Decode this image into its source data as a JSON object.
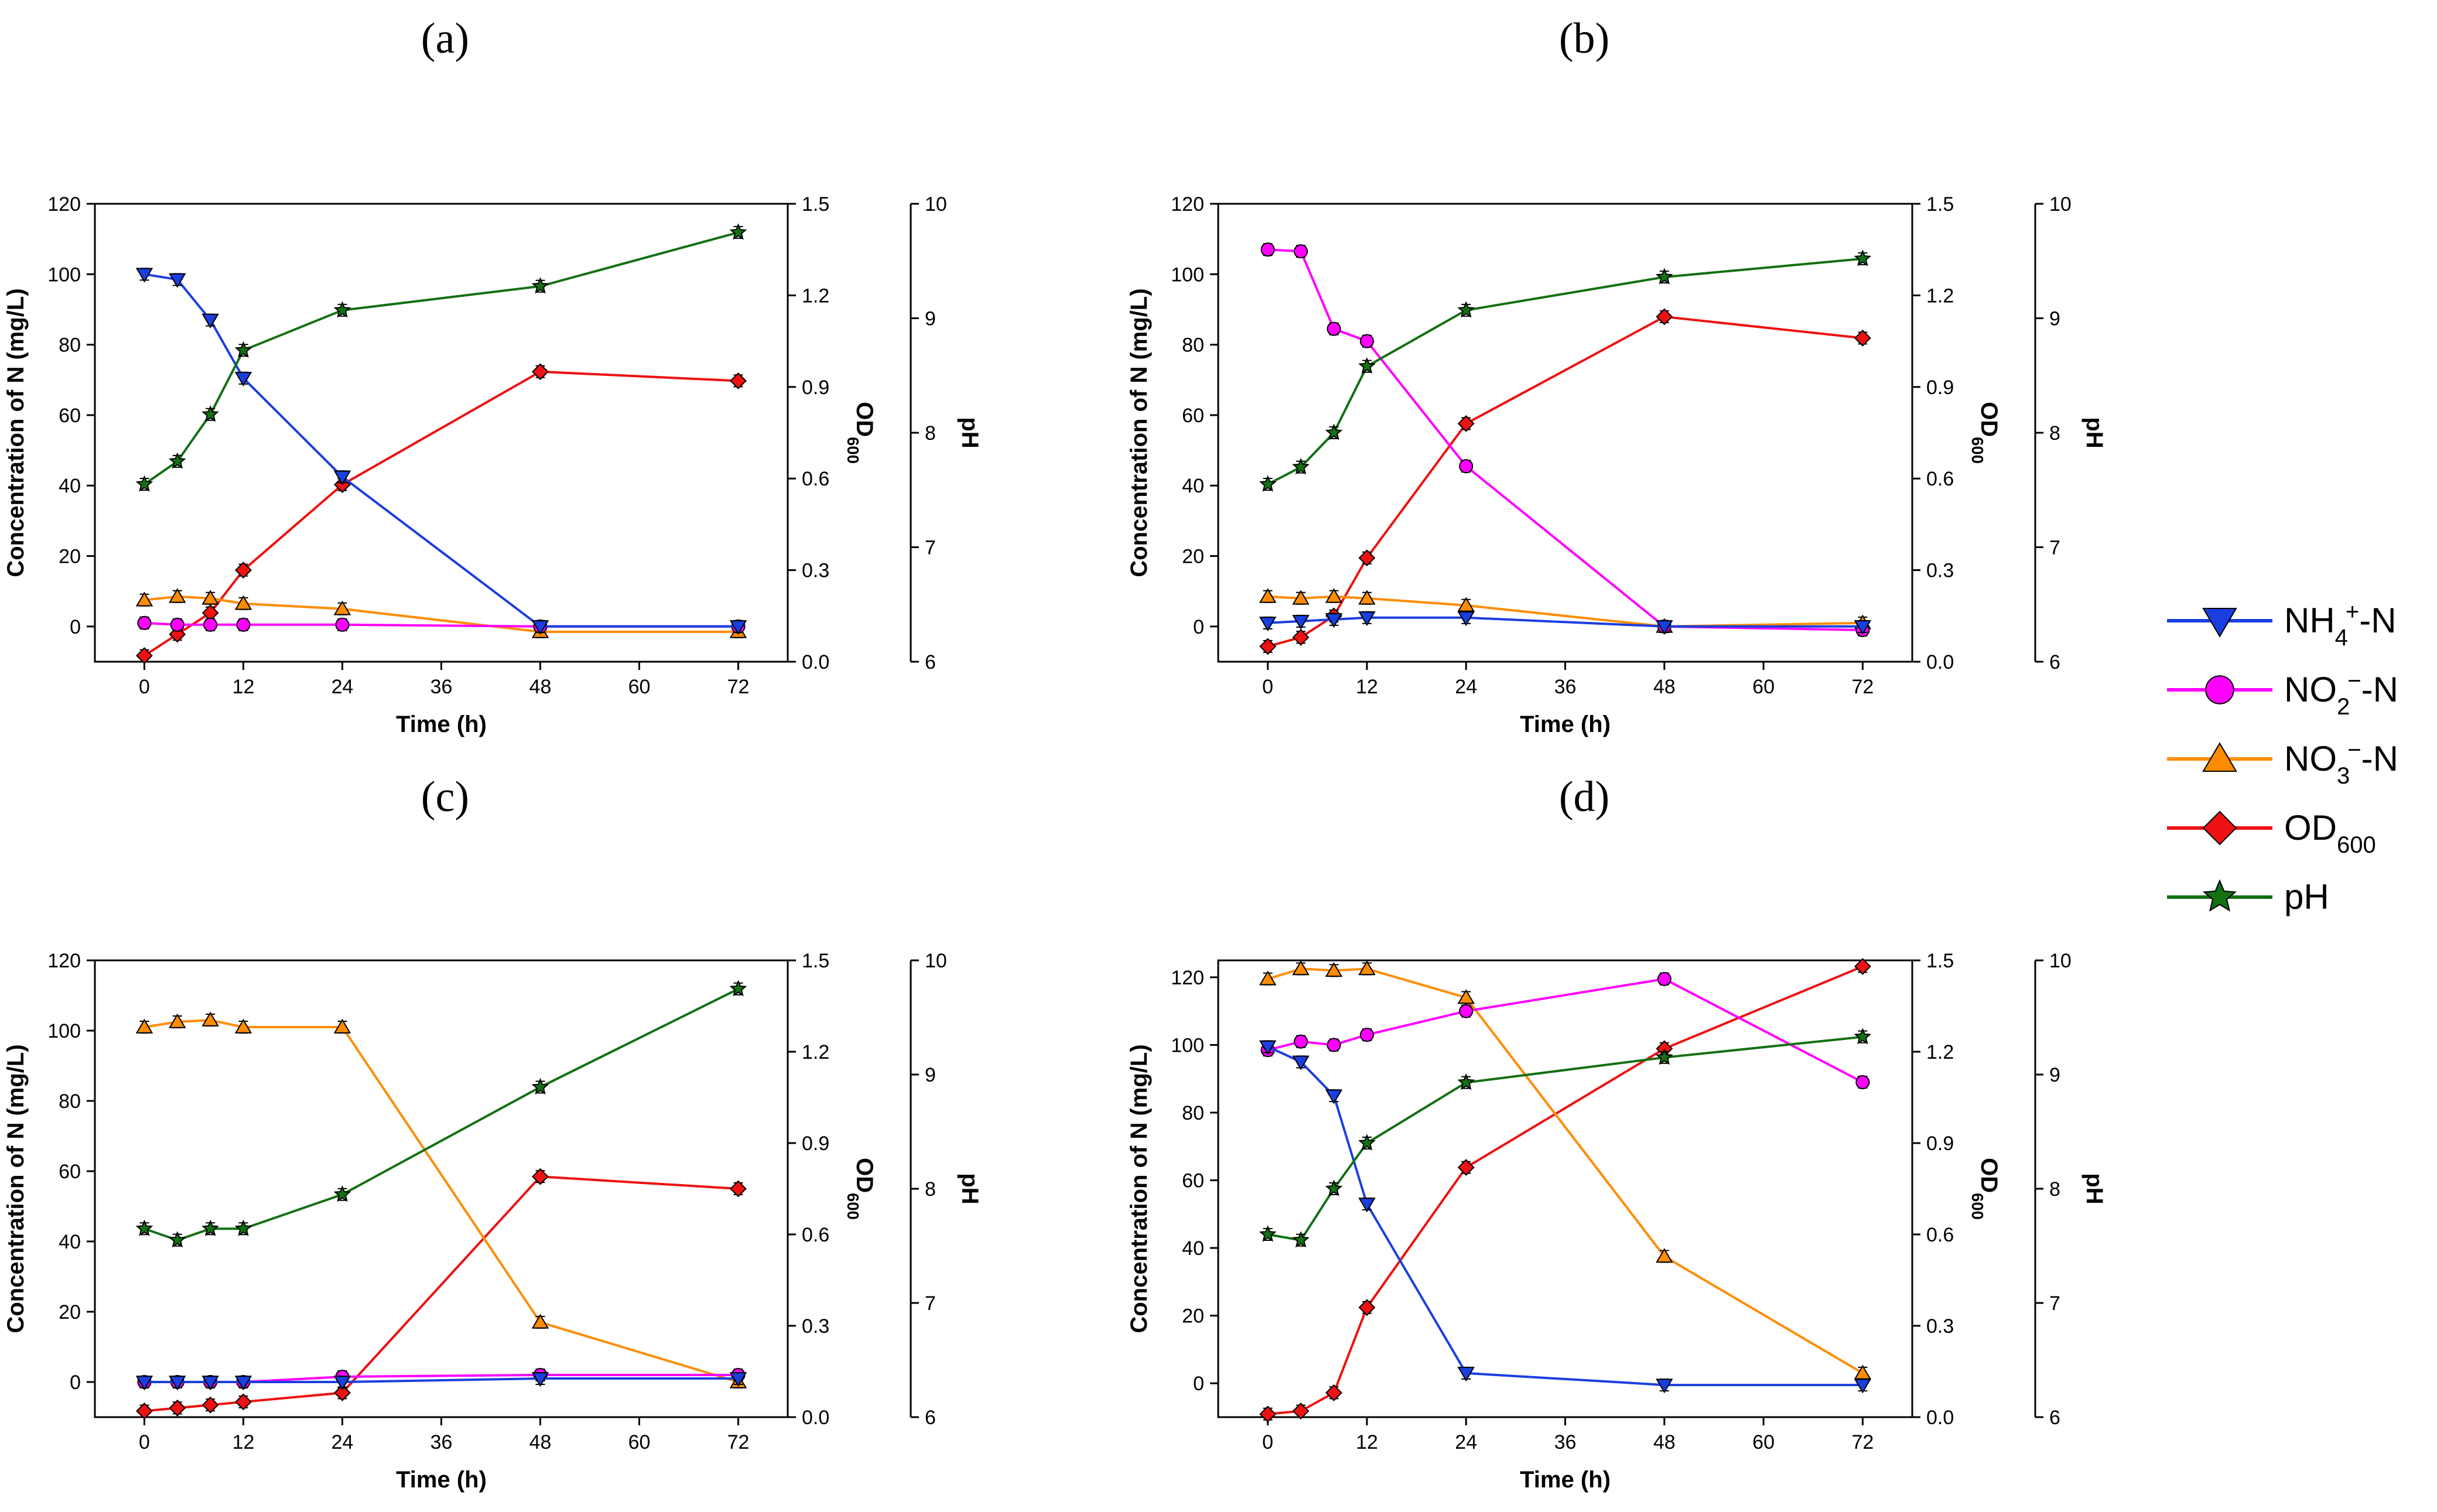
{
  "figure": {
    "legend": [
      {
        "key": "nh4",
        "label": "NH4+-N",
        "base": "NH",
        "sub1": "4",
        "sup": "+",
        "rest": "-N",
        "color": "#1a3fe0",
        "marker": "triangle-down"
      },
      {
        "key": "no2",
        "label": "NO2−-N",
        "base": "NO",
        "sub1": "2",
        "sup": "−",
        "rest": "-N",
        "color": "#ff00ff",
        "marker": "circle"
      },
      {
        "key": "no3",
        "label": "NO3−-N",
        "base": "NO",
        "sub1": "3",
        "sup": "−",
        "rest": "-N",
        "color": "#ff8c00",
        "marker": "triangle-up"
      },
      {
        "key": "od",
        "label": "OD600",
        "base": "OD",
        "sub1": "600",
        "sup": "",
        "rest": "",
        "color": "#ee1111",
        "marker": "diamond"
      },
      {
        "key": "ph",
        "label": "pH",
        "base": "pH",
        "sub1": "",
        "sup": "",
        "rest": "",
        "color": "#137013",
        "marker": "star"
      }
    ]
  },
  "chart_data": [
    {
      "panel": "(a)",
      "type": "line",
      "xlabel": "Time (h)",
      "ylabel": "Concentration of N (mg/L)",
      "y2label": "OD600",
      "y3label": "pH",
      "x": [
        0,
        4,
        8,
        12,
        24,
        48,
        72
      ],
      "xticks": [
        0,
        12,
        24,
        36,
        48,
        60,
        72
      ],
      "xlim": [
        -6,
        78
      ],
      "ylim": [
        -10,
        120
      ],
      "yticks": [
        0,
        20,
        40,
        60,
        80,
        100,
        120
      ],
      "y2lim": [
        0,
        1.5
      ],
      "y2ticks": [
        "0.0",
        "0.3",
        "0.6",
        "0.9",
        "1.2",
        "1.5"
      ],
      "y3lim": [
        6,
        10
      ],
      "y3ticks": [
        "6",
        "7",
        "8",
        "9",
        "10"
      ],
      "series": [
        {
          "name": "NH4+-N",
          "key": "nh4",
          "axis": "left",
          "values": [
            100,
            98.5,
            87,
            70.5,
            42.5,
            0,
            0
          ]
        },
        {
          "name": "NO2−-N",
          "key": "no2",
          "axis": "left",
          "values": [
            1,
            0.5,
            0.5,
            0.5,
            0.5,
            0,
            0
          ]
        },
        {
          "name": "NO3−-N",
          "key": "no3",
          "axis": "left",
          "values": [
            7.5,
            8.5,
            8,
            6.5,
            5,
            -1.5,
            -1.5
          ]
        },
        {
          "name": "OD600",
          "key": "od",
          "axis": "od",
          "values": [
            0.02,
            0.09,
            0.16,
            0.3,
            0.58,
            0.95,
            0.92
          ]
        },
        {
          "name": "pH",
          "key": "ph",
          "axis": "ph",
          "values": [
            7.55,
            7.75,
            8.16,
            8.72,
            9.07,
            9.28,
            9.75
          ]
        }
      ]
    },
    {
      "panel": "(b)",
      "type": "line",
      "xlabel": "Time (h)",
      "ylabel": "Concentration of N (mg/L)",
      "y2label": "OD600",
      "y3label": "pH",
      "x": [
        0,
        4,
        8,
        12,
        24,
        48,
        72
      ],
      "xticks": [
        0,
        12,
        24,
        36,
        48,
        60,
        72
      ],
      "xlim": [
        -6,
        78
      ],
      "ylim": [
        -10,
        120
      ],
      "yticks": [
        0,
        20,
        40,
        60,
        80,
        100,
        120
      ],
      "y2lim": [
        0,
        1.5
      ],
      "y2ticks": [
        "0.0",
        "0.3",
        "0.6",
        "0.9",
        "1.2",
        "1.5"
      ],
      "y3lim": [
        6,
        10
      ],
      "y3ticks": [
        "6",
        "7",
        "8",
        "9",
        "10"
      ],
      "series": [
        {
          "name": "NH4+-N",
          "key": "nh4",
          "axis": "left",
          "values": [
            1,
            1.5,
            2,
            2.5,
            2.5,
            0,
            0
          ]
        },
        {
          "name": "NO2−-N",
          "key": "no2",
          "axis": "left",
          "values": [
            107,
            106.5,
            84.5,
            81,
            45.5,
            0,
            -1
          ]
        },
        {
          "name": "NO3−-N",
          "key": "no3",
          "axis": "left",
          "values": [
            8.5,
            8,
            8.5,
            8,
            6,
            0,
            1
          ]
        },
        {
          "name": "OD600",
          "key": "od",
          "axis": "od",
          "values": [
            0.05,
            0.08,
            0.15,
            0.34,
            0.78,
            1.13,
            1.06
          ]
        },
        {
          "name": "pH",
          "key": "ph",
          "axis": "ph",
          "values": [
            7.55,
            7.7,
            8.0,
            8.58,
            9.07,
            9.36,
            9.52
          ]
        }
      ]
    },
    {
      "panel": "(c)",
      "type": "line",
      "xlabel": "Time (h)",
      "ylabel": "Concentration of N (mg/L)",
      "y2label": "OD600",
      "y3label": "pH",
      "x": [
        0,
        4,
        8,
        12,
        24,
        48,
        72
      ],
      "xticks": [
        0,
        12,
        24,
        36,
        48,
        60,
        72
      ],
      "xlim": [
        -6,
        78
      ],
      "ylim": [
        -10,
        120
      ],
      "yticks": [
        0,
        20,
        40,
        60,
        80,
        100,
        120
      ],
      "y2lim": [
        0,
        1.5
      ],
      "y2ticks": [
        "0.0",
        "0.3",
        "0.6",
        "0.9",
        "1.2",
        "1.5"
      ],
      "y3lim": [
        6,
        10
      ],
      "y3ticks": [
        "6",
        "7",
        "8",
        "9",
        "10"
      ],
      "series": [
        {
          "name": "NH4+-N",
          "key": "nh4",
          "axis": "left",
          "values": [
            0,
            0,
            0,
            0,
            0,
            1,
            1
          ]
        },
        {
          "name": "NO2−-N",
          "key": "no2",
          "axis": "left",
          "values": [
            0,
            0,
            0,
            0,
            1.5,
            2,
            2
          ]
        },
        {
          "name": "NO3−-N",
          "key": "no3",
          "axis": "left",
          "values": [
            101,
            102.5,
            103,
            101,
            101,
            17,
            0
          ]
        },
        {
          "name": "OD600",
          "key": "od",
          "axis": "od",
          "values": [
            0.02,
            0.03,
            0.04,
            0.05,
            0.08,
            0.79,
            0.75
          ]
        },
        {
          "name": "pH",
          "key": "ph",
          "axis": "ph",
          "values": [
            7.65,
            7.55,
            7.65,
            7.65,
            7.95,
            8.89,
            9.75
          ]
        }
      ]
    },
    {
      "panel": "(d)",
      "type": "line",
      "xlabel": "Time (h)",
      "ylabel": "Concentration of N (mg/L)",
      "y2label": "OD600",
      "y3label": "pH",
      "x": [
        0,
        4,
        8,
        12,
        24,
        48,
        72
      ],
      "xticks": [
        0,
        12,
        24,
        36,
        48,
        60,
        72
      ],
      "xlim": [
        -6,
        78
      ],
      "ylim": [
        -10,
        125
      ],
      "yticks": [
        0,
        20,
        40,
        60,
        80,
        100,
        120
      ],
      "y2lim": [
        0,
        1.5
      ],
      "y2ticks": [
        "0.0",
        "0.3",
        "0.6",
        "0.9",
        "1.2",
        "1.5"
      ],
      "y3lim": [
        6,
        10
      ],
      "y3ticks": [
        "6",
        "7",
        "8",
        "9",
        "10"
      ],
      "series": [
        {
          "name": "NH4+-N",
          "key": "nh4",
          "axis": "left",
          "values": [
            99.5,
            95,
            85,
            53,
            3,
            -0.5,
            -0.5
          ]
        },
        {
          "name": "NO2−-N",
          "key": "no2",
          "axis": "left",
          "values": [
            98.5,
            101,
            100,
            103,
            110,
            119.5,
            89
          ]
        },
        {
          "name": "NO3−-N",
          "key": "no3",
          "axis": "left",
          "values": [
            119.5,
            122.5,
            122,
            122.5,
            114,
            37.5,
            3
          ]
        },
        {
          "name": "OD600",
          "key": "od",
          "axis": "od",
          "values": [
            0.01,
            0.02,
            0.08,
            0.36,
            0.82,
            1.21,
            1.48
          ]
        },
        {
          "name": "pH",
          "key": "ph",
          "axis": "ph",
          "values": [
            7.6,
            7.55,
            8.0,
            8.4,
            8.93,
            9.15,
            9.33
          ]
        }
      ]
    }
  ]
}
